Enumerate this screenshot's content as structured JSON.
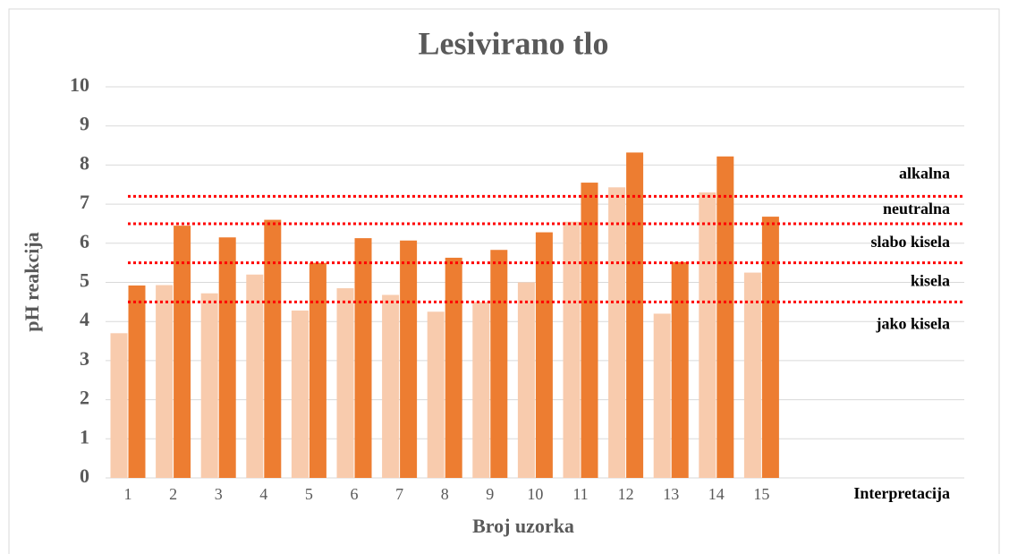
{
  "chart_data": {
    "type": "bar",
    "title": "Lesivirano tlo",
    "x_label": "Broj uzorka",
    "y_label": "pH reakcija",
    "categories": [
      "1",
      "2",
      "3",
      "4",
      "5",
      "6",
      "7",
      "8",
      "9",
      "10",
      "11",
      "12",
      "13",
      "14",
      "15"
    ],
    "series": [
      {
        "color": "#f8cbad",
        "values": [
          3.7,
          4.93,
          4.72,
          5.2,
          4.28,
          4.85,
          4.68,
          4.25,
          4.5,
          5.0,
          6.55,
          7.43,
          4.2,
          7.3,
          5.25
        ]
      },
      {
        "color": "#ed7d31",
        "values": [
          4.92,
          6.45,
          6.15,
          6.6,
          5.5,
          6.13,
          6.07,
          5.63,
          5.83,
          6.28,
          7.55,
          8.32,
          5.52,
          8.22,
          6.68
        ]
      }
    ],
    "ylim": [
      0,
      10
    ],
    "yticks": [
      0,
      1,
      2,
      3,
      4,
      5,
      6,
      7,
      8,
      9,
      10
    ],
    "grid": true,
    "thresholds": {
      "color": "#ff0000",
      "values": [
        4.5,
        5.5,
        6.5,
        7.2
      ]
    },
    "zones": {
      "title": "Interpretacija",
      "labels": [
        "jako kisela",
        "kisela",
        "slabo kisela",
        "neutralna",
        "alkalna"
      ]
    }
  }
}
